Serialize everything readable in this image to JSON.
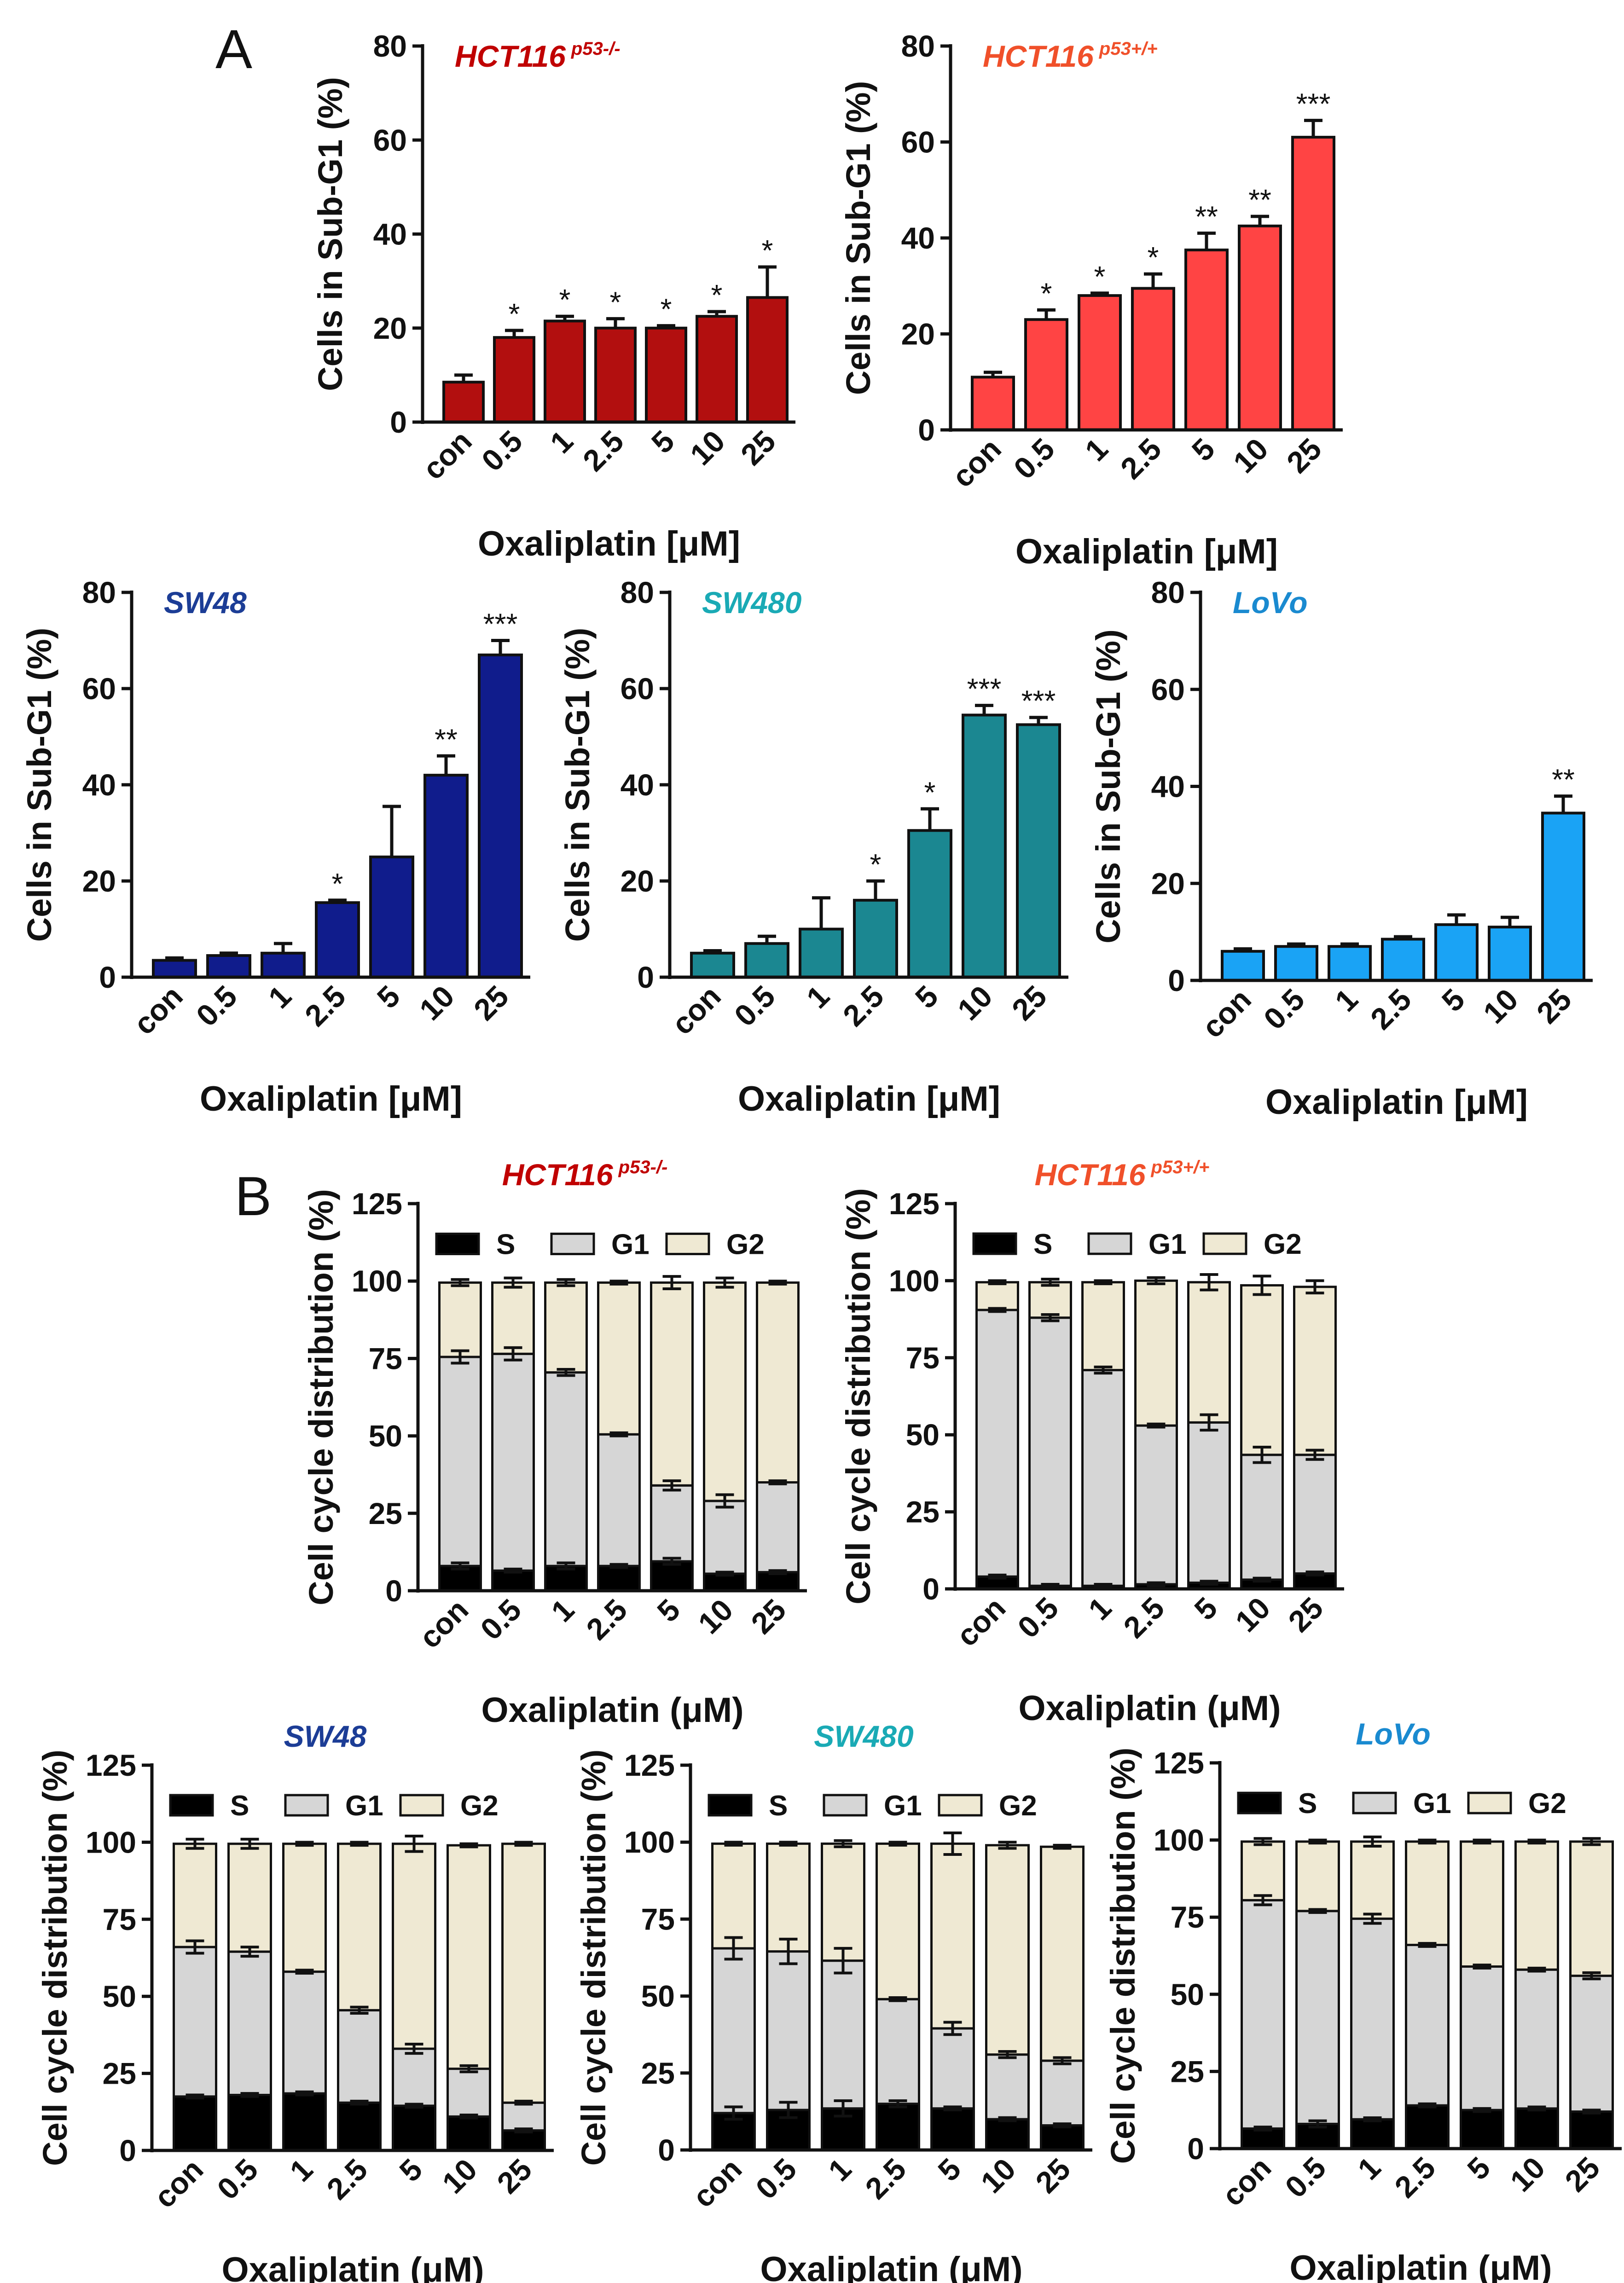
{
  "panel_labels": [
    "A",
    "B"
  ],
  "chart_data": [
    {
      "type": "bar",
      "panel": "A",
      "title": "HCT116",
      "title_superscript": "p53-/-",
      "title_color": "#C00000",
      "bar_color": "#B20F0F",
      "categories": [
        "con",
        "0.5",
        "1",
        "2.5",
        "5",
        "10",
        "25"
      ],
      "values": [
        8.5,
        18,
        21.5,
        20,
        20,
        22.5,
        26.5
      ],
      "errors": [
        1.5,
        1.5,
        1.0,
        2.0,
        0.5,
        1.0,
        6.5
      ],
      "significance": [
        "",
        "*",
        "*",
        "*",
        "*",
        "*",
        "*"
      ],
      "ylabel": "Cells in Sub-G1 (%)",
      "xlabel": "Oxaliplatin [μM]",
      "ylim": [
        0,
        80
      ],
      "yticks": [
        "0",
        "20",
        "40",
        "60",
        "80"
      ]
    },
    {
      "type": "bar",
      "panel": "A",
      "title": "HCT116",
      "title_superscript": "p53+/+",
      "title_color": "#F0502A",
      "bar_color": "#FF4444",
      "categories": [
        "con",
        "0.5",
        "1",
        "2.5",
        "5",
        "10",
        "25"
      ],
      "values": [
        11,
        23,
        28,
        29.5,
        37.5,
        42.5,
        61
      ],
      "errors": [
        1.0,
        2.0,
        0.5,
        3.0,
        3.5,
        2.0,
        3.5
      ],
      "significance": [
        "",
        "*",
        "*",
        "*",
        "**",
        "**",
        "***"
      ],
      "ylabel": "Cells in Sub-G1 (%)",
      "xlabel": "Oxaliplatin [μM]",
      "ylim": [
        0,
        80
      ],
      "yticks": [
        "0",
        "20",
        "40",
        "60",
        "80"
      ]
    },
    {
      "type": "bar",
      "panel": "A",
      "title": "SW48",
      "title_superscript": "",
      "title_color": "#1C3D96",
      "bar_color": "#101C8C",
      "categories": [
        "con",
        "0.5",
        "1",
        "2.5",
        "5",
        "10",
        "25"
      ],
      "values": [
        3.5,
        4.5,
        5,
        15.5,
        25,
        42,
        67
      ],
      "errors": [
        0.5,
        0.5,
        2.0,
        0.5,
        10.5,
        4.0,
        3.0
      ],
      "significance": [
        "",
        "",
        "",
        "*",
        "",
        "**",
        "***"
      ],
      "ylabel": "Cells in Sub-G1 (%)",
      "xlabel": "Oxaliplatin [μM]",
      "ylim": [
        0,
        80
      ],
      "yticks": [
        "0",
        "20",
        "40",
        "60",
        "80"
      ]
    },
    {
      "type": "bar",
      "panel": "A",
      "title": "SW480",
      "title_superscript": "",
      "title_color": "#1AAAB5",
      "bar_color": "#1B8791",
      "categories": [
        "con",
        "0.5",
        "1",
        "2.5",
        "5",
        "10",
        "25"
      ],
      "values": [
        5,
        7,
        10,
        16,
        30.5,
        54.5,
        52.5
      ],
      "errors": [
        0.5,
        1.5,
        6.5,
        4.0,
        4.5,
        2.0,
        1.5
      ],
      "significance": [
        "",
        "",
        "",
        "*",
        "*",
        "***",
        "***"
      ],
      "ylabel": "Cells in Sub-G1 (%)",
      "xlabel": "Oxaliplatin [μM]",
      "ylim": [
        0,
        80
      ],
      "yticks": [
        "0",
        "20",
        "40",
        "60",
        "80"
      ]
    },
    {
      "type": "bar",
      "panel": "A",
      "title": "LoVo",
      "title_superscript": "",
      "title_color": "#1A8AD0",
      "bar_color": "#1AA3F5",
      "categories": [
        "con",
        "0.5",
        "1",
        "2.5",
        "5",
        "10",
        "25"
      ],
      "values": [
        6,
        7,
        7,
        8.5,
        11.5,
        11,
        34.5
      ],
      "errors": [
        0.5,
        0.5,
        0.5,
        0.5,
        2.0,
        2.0,
        3.5
      ],
      "significance": [
        "",
        "",
        "",
        "",
        "",
        "",
        "**"
      ],
      "ylabel": "Cells in Sub-G1 (%)",
      "xlabel": "Oxaliplatin [μM]",
      "ylim": [
        0,
        80
      ],
      "yticks": [
        "0",
        "20",
        "40",
        "60",
        "80"
      ]
    },
    {
      "type": "stacked-bar",
      "panel": "B",
      "title": "HCT116",
      "title_superscript": "p53-/-",
      "title_color": "#C00000",
      "categories": [
        "con",
        "0.5",
        "1",
        "2.5",
        "5",
        "10",
        "25"
      ],
      "legend": [
        "S",
        "G1",
        "G2"
      ],
      "series": [
        {
          "name": "S",
          "color": "#000000",
          "cumulative": [
            8,
            6.5,
            8,
            8,
            9.5,
            5.5,
            6
          ],
          "cumulative_errors": [
            1,
            0.5,
            1,
            0.5,
            1,
            0.5,
            0.5
          ]
        },
        {
          "name": "G1",
          "color": "#D6D6D6",
          "cumulative": [
            75.5,
            76.5,
            70.5,
            50.5,
            34,
            29,
            35
          ],
          "cumulative_errors": [
            2,
            2,
            1,
            0.5,
            1.5,
            2,
            0.5
          ]
        },
        {
          "name": "G2",
          "color": "#EFE9D3",
          "cumulative": [
            99.5,
            99.5,
            99.5,
            99.5,
            99.5,
            99.5,
            99.5
          ],
          "cumulative_errors": [
            1,
            1.5,
            1,
            0.5,
            2,
            1.5,
            0.5
          ]
        }
      ],
      "ylabel": "Cell cycle distribution (%)",
      "xlabel": "Oxaliplatin (μM)",
      "ylim": [
        0,
        125
      ],
      "yticks": [
        "0",
        "25",
        "50",
        "75",
        "100",
        "125"
      ]
    },
    {
      "type": "stacked-bar",
      "panel": "B",
      "title": "HCT116",
      "title_superscript": "p53+/+",
      "title_color": "#F0502A",
      "categories": [
        "con",
        "0.5",
        "1",
        "2.5",
        "5",
        "10",
        "25"
      ],
      "legend": [
        "S",
        "G1",
        "G2"
      ],
      "series": [
        {
          "name": "S",
          "color": "#000000",
          "cumulative": [
            4,
            1,
            1,
            1.5,
            2,
            3,
            5
          ],
          "cumulative_errors": [
            0.5,
            0.5,
            0.5,
            0.5,
            0.5,
            0.5,
            0.5
          ]
        },
        {
          "name": "G1",
          "color": "#D6D6D6",
          "cumulative": [
            90.5,
            88,
            71,
            53,
            54,
            43.5,
            43.5
          ],
          "cumulative_errors": [
            0.5,
            1,
            1,
            0.5,
            2.5,
            2.5,
            1.5
          ]
        },
        {
          "name": "G2",
          "color": "#EFE9D3",
          "cumulative": [
            99.5,
            99.5,
            99.5,
            100,
            99.5,
            98.5,
            98
          ],
          "cumulative_errors": [
            0.5,
            1,
            0.5,
            1,
            2.5,
            3,
            2
          ]
        }
      ],
      "ylabel": "Cell cycle distribution (%)",
      "xlabel": "Oxaliplatin (μM)",
      "ylim": [
        0,
        125
      ],
      "yticks": [
        "0",
        "25",
        "50",
        "75",
        "100",
        "125"
      ]
    },
    {
      "type": "stacked-bar",
      "panel": "B",
      "title": "SW48",
      "title_superscript": "",
      "title_color": "#1C3D96",
      "categories": [
        "con",
        "0.5",
        "1",
        "2.5",
        "5",
        "10",
        "25"
      ],
      "legend": [
        "S",
        "G1",
        "G2"
      ],
      "series": [
        {
          "name": "S",
          "color": "#000000",
          "cumulative": [
            17.5,
            18,
            18.5,
            15.5,
            14.5,
            11,
            6.5
          ],
          "cumulative_errors": [
            0.5,
            0.5,
            0.5,
            0.5,
            0.5,
            0.5,
            0.5
          ]
        },
        {
          "name": "G1",
          "color": "#D6D6D6",
          "cumulative": [
            66,
            64.5,
            58,
            45.5,
            33,
            26.5,
            15.5
          ],
          "cumulative_errors": [
            2,
            1.5,
            0.5,
            1,
            1.5,
            1,
            0.5
          ]
        },
        {
          "name": "G2",
          "color": "#EFE9D3",
          "cumulative": [
            99.5,
            99.5,
            99.5,
            99.5,
            99.5,
            99,
            99.5
          ],
          "cumulative_errors": [
            1.5,
            1.5,
            0.5,
            0.5,
            2.5,
            0.5,
            0.5
          ]
        }
      ],
      "ylabel": "Cell cycle distribution (%)",
      "xlabel": "Oxaliplatin (μM)",
      "ylim": [
        0,
        125
      ],
      "yticks": [
        "0",
        "25",
        "50",
        "75",
        "100",
        "125"
      ]
    },
    {
      "type": "stacked-bar",
      "panel": "B",
      "title": "SW480",
      "title_superscript": "",
      "title_color": "#1AAAB5",
      "categories": [
        "con",
        "0.5",
        "1",
        "2.5",
        "5",
        "10",
        "25"
      ],
      "legend": [
        "S",
        "G1",
        "G2"
      ],
      "series": [
        {
          "name": "S",
          "color": "#000000",
          "cumulative": [
            12,
            13,
            13.5,
            15,
            13.5,
            10,
            8
          ],
          "cumulative_errors": [
            2,
            2.5,
            2.5,
            1,
            0.5,
            0.5,
            0.5
          ]
        },
        {
          "name": "G1",
          "color": "#D6D6D6",
          "cumulative": [
            65.5,
            64.5,
            61.5,
            49,
            39.5,
            31,
            29
          ],
          "cumulative_errors": [
            3.5,
            4,
            4,
            0.5,
            2,
            1,
            1
          ]
        },
        {
          "name": "G2",
          "color": "#EFE9D3",
          "cumulative": [
            99.5,
            99.5,
            99.5,
            99.5,
            99.5,
            99,
            98.5
          ],
          "cumulative_errors": [
            0.5,
            0.5,
            1,
            0.5,
            3.5,
            1,
            0.5
          ]
        }
      ],
      "ylabel": "Cell cycle distribution (%)",
      "xlabel": "Oxaliplatin (μM)",
      "ylim": [
        0,
        125
      ],
      "yticks": [
        "0",
        "25",
        "50",
        "75",
        "100",
        "125"
      ]
    },
    {
      "type": "stacked-bar",
      "panel": "B",
      "title": "LoVo",
      "title_superscript": "",
      "title_color": "#1A8AD0",
      "categories": [
        "con",
        "0.5",
        "1",
        "2.5",
        "5",
        "10",
        "25"
      ],
      "legend": [
        "S",
        "G1",
        "G2"
      ],
      "series": [
        {
          "name": "S",
          "color": "#000000",
          "cumulative": [
            6.5,
            8,
            9.5,
            14,
            12.5,
            13,
            12
          ],
          "cumulative_errors": [
            0.5,
            1,
            0.5,
            0.5,
            0.5,
            0.5,
            0.5
          ]
        },
        {
          "name": "G1",
          "color": "#D6D6D6",
          "cumulative": [
            80.5,
            77,
            74.5,
            66,
            59,
            58,
            56
          ],
          "cumulative_errors": [
            1.5,
            0.5,
            1.5,
            0.5,
            0.5,
            0.5,
            1
          ]
        },
        {
          "name": "G2",
          "color": "#EFE9D3",
          "cumulative": [
            99.5,
            99.5,
            99.5,
            99.5,
            99.5,
            99.5,
            99.5
          ],
          "cumulative_errors": [
            1,
            0.5,
            1.5,
            0.5,
            0.5,
            0.5,
            1
          ]
        }
      ],
      "ylabel": "Cell cycle distribution (%)",
      "xlabel": "Oxaliplatin (μM)",
      "ylim": [
        0,
        125
      ],
      "yticks": [
        "0",
        "25",
        "50",
        "75",
        "100",
        "125"
      ]
    }
  ]
}
